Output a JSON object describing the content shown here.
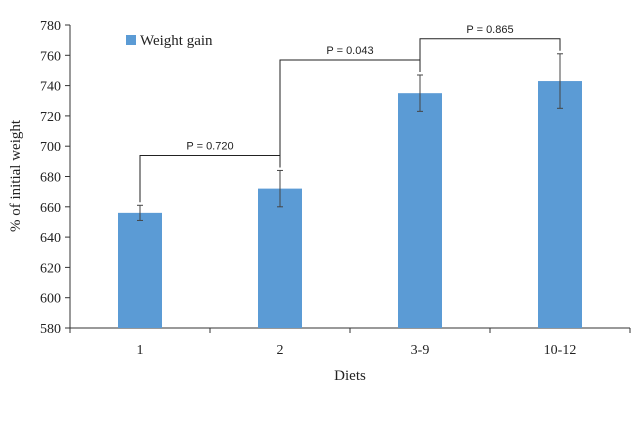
{
  "chart_data": {
    "type": "bar",
    "title": "",
    "xlabel": "Diets",
    "ylabel": "% of initial weight",
    "ylim": [
      580,
      780
    ],
    "yticks": [
      580,
      600,
      620,
      640,
      660,
      680,
      700,
      720,
      740,
      760,
      780
    ],
    "categories": [
      "1",
      "2",
      "3-9",
      "10-12"
    ],
    "series": [
      {
        "name": "Weight gain",
        "color": "#5b9bd5",
        "values": [
          656,
          672,
          735,
          743
        ],
        "error": [
          5,
          12,
          12,
          18
        ]
      }
    ],
    "legend": "top-left",
    "grid": false,
    "annotations": [
      {
        "label": "P = 0.720",
        "from": 0,
        "to": 1
      },
      {
        "label": "P = 0.043",
        "from": 1,
        "to": 2
      },
      {
        "label": "P = 0.865",
        "from": 2,
        "to": 3
      }
    ]
  }
}
